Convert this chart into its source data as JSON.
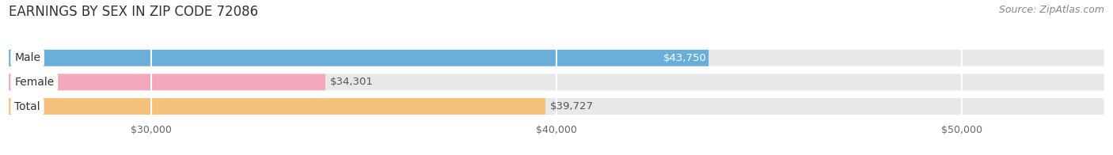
{
  "title": "EARNINGS BY SEX IN ZIP CODE 72086",
  "source": "Source: ZipAtlas.com",
  "categories": [
    "Male",
    "Female",
    "Total"
  ],
  "values": [
    43750,
    34301,
    39727
  ],
  "bar_colors": [
    "#6aaedb",
    "#f4a8bb",
    "#f5c07a"
  ],
  "value_label_colors": [
    "white",
    "#555555",
    "#555555"
  ],
  "xlim_min": 26500,
  "xlim_max": 53500,
  "xticks": [
    30000,
    40000,
    50000
  ],
  "xtick_labels": [
    "$30,000",
    "$40,000",
    "$50,000"
  ],
  "value_labels": [
    "$43,750",
    "$34,301",
    "$39,727"
  ],
  "background_color": "#f5f5f5",
  "bar_bg_color": "#e8e8e8",
  "title_fontsize": 12,
  "source_fontsize": 9,
  "label_fontsize": 10,
  "value_fontsize": 9.5,
  "tick_fontsize": 9,
  "bar_height": 0.68
}
